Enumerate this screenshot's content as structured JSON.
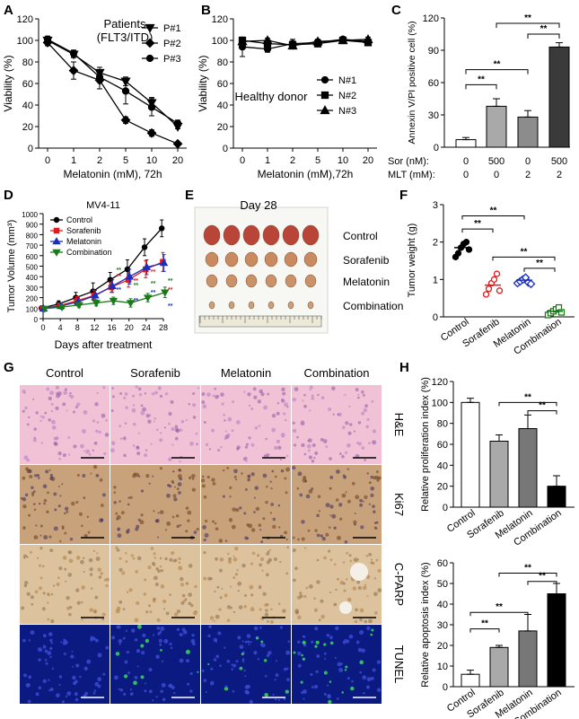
{
  "panels": {
    "A": "A",
    "B": "B",
    "C": "C",
    "D": "D",
    "E": "E",
    "F": "F",
    "G": "G",
    "H": "H"
  },
  "colors": {
    "control": "#000000",
    "sorafenib": "#e31a1c",
    "melatonin": "#1a2fbf",
    "combination": "#1a7a1a",
    "he": "#f1c1d6",
    "ki67": "#c8a27a",
    "parp": "#dcc39e",
    "tunel": "#0a1a80",
    "tunel_green": "#39d95a"
  },
  "chart_data": [
    {
      "id": "A",
      "type": "line",
      "title": "Patients (FLT3/ITD)",
      "xlabel": "Melatonin (mM), 72h",
      "ylabel": "Viability (%)",
      "x": [
        "0",
        "1",
        "2",
        "5",
        "10",
        "20"
      ],
      "ylim": [
        0,
        120
      ],
      "yticks": [
        "0",
        "20",
        "40",
        "60",
        "80",
        "100",
        "120"
      ],
      "series": [
        {
          "name": "P#1",
          "marker": "tri-down",
          "values": [
            100,
            87,
            70,
            62,
            42,
            20
          ],
          "err": [
            3,
            3,
            5,
            4,
            5,
            2
          ]
        },
        {
          "name": "P#2",
          "marker": "diamond",
          "values": [
            98,
            72,
            63,
            26,
            14,
            4
          ],
          "err": [
            3,
            8,
            8,
            3,
            3,
            1
          ]
        },
        {
          "name": "P#3",
          "marker": "circle",
          "values": [
            101,
            88,
            66,
            53,
            38,
            23
          ],
          "err": [
            3,
            3,
            5,
            12,
            8,
            3
          ]
        }
      ]
    },
    {
      "id": "B",
      "type": "line",
      "title": "Healthy donor",
      "xlabel": "Melatonin (mM),72h",
      "ylabel": "Viability (%)",
      "x": [
        "0",
        "1",
        "2",
        "5",
        "10",
        "20"
      ],
      "ylim": [
        0,
        120
      ],
      "yticks": [
        "0",
        "20",
        "40",
        "60",
        "80",
        "100",
        "120"
      ],
      "series": [
        {
          "name": "N#1",
          "marker": "circle",
          "values": [
            94,
            92,
            97,
            98,
            101,
            99
          ],
          "err": [
            9,
            3,
            4,
            3,
            2,
            2
          ]
        },
        {
          "name": "N#2",
          "marker": "square",
          "values": [
            100,
            97,
            96,
            97,
            100,
            98
          ],
          "err": [
            3,
            3,
            3,
            3,
            2,
            2
          ]
        },
        {
          "name": "N#3",
          "marker": "triangle",
          "values": [
            99,
            100,
            95,
            99,
            100,
            101
          ],
          "err": [
            3,
            2,
            3,
            2,
            2,
            2
          ]
        }
      ]
    },
    {
      "id": "C",
      "type": "bar",
      "ylabel": "Annexin V/PI positive cell (%)",
      "ylim": [
        0,
        120
      ],
      "yticks": [
        "0",
        "30",
        "60",
        "90",
        "120"
      ],
      "row_labels": [
        "Sor (nM):",
        "MLT (mM):"
      ],
      "groups": [
        [
          "0",
          "0"
        ],
        [
          "500",
          "0"
        ],
        [
          "0",
          "2"
        ],
        [
          "500",
          "2"
        ]
      ],
      "values": [
        7,
        38,
        28,
        93
      ],
      "err": [
        2,
        7,
        6,
        4
      ],
      "fills": [
        "#ffffff",
        "#a9a9a9",
        "#8c8c8c",
        "#3a3a3a"
      ],
      "sig": [
        "**",
        "**",
        "**",
        "**"
      ]
    },
    {
      "id": "D",
      "type": "line",
      "title": "MV4-11",
      "xlabel": "Days after treatment",
      "ylabel": "Tumor Volume (mm³)",
      "x": [
        0,
        4,
        8,
        12,
        16,
        20,
        24,
        28
      ],
      "ylim": [
        0,
        1000
      ],
      "xticks": [
        "0",
        "4",
        "8",
        "12",
        "16",
        "20",
        "24",
        "28"
      ],
      "yticks": [
        "0",
        "100",
        "200",
        "300",
        "400",
        "500",
        "600",
        "700",
        "800",
        "900",
        "1000"
      ],
      "series": [
        {
          "name": "Control",
          "marker": "circle",
          "values": [
            100,
            140,
            200,
            260,
            370,
            470,
            680,
            860
          ],
          "err": [
            20,
            30,
            50,
            80,
            70,
            90,
            80,
            80
          ]
        },
        {
          "name": "Sorafenib",
          "marker": "square",
          "values": [
            95,
            125,
            170,
            220,
            300,
            370,
            470,
            540
          ],
          "err": [
            20,
            25,
            40,
            50,
            50,
            70,
            80,
            90
          ]
        },
        {
          "name": "Melatonin",
          "marker": "triangle",
          "values": [
            95,
            120,
            160,
            220,
            310,
            400,
            490,
            530
          ],
          "err": [
            20,
            25,
            40,
            50,
            60,
            70,
            70,
            80
          ]
        },
        {
          "name": "Combination",
          "marker": "tri-down",
          "values": [
            95,
            110,
            130,
            150,
            170,
            150,
            200,
            250
          ],
          "err": [
            15,
            20,
            25,
            30,
            35,
            40,
            40,
            50
          ]
        }
      ],
      "annotations": [
        "**",
        "**",
        "**",
        "**",
        "**",
        "**",
        "**",
        "**",
        "**",
        "**",
        "**",
        "**"
      ]
    },
    {
      "id": "F",
      "type": "scatter",
      "ylabel": "Tumor weight (g)",
      "ylim": [
        0,
        3
      ],
      "yticks": [
        "0",
        "1",
        "2",
        "3"
      ],
      "categories": [
        "Control",
        "Sorafenib",
        "Melatonin",
        "Combination"
      ],
      "means": [
        1.85,
        0.85,
        0.98,
        0.15
      ],
      "points": [
        [
          1.6,
          1.7,
          1.85,
          1.95,
          2.0,
          1.8
        ],
        [
          0.6,
          0.75,
          0.9,
          1.0,
          1.15,
          0.7
        ],
        [
          0.9,
          0.95,
          1.0,
          1.05,
          0.92,
          0.88
        ],
        [
          0.05,
          0.1,
          0.15,
          0.2,
          0.25,
          0.12
        ]
      ],
      "sig": [
        "**",
        "**",
        "**",
        "**"
      ]
    },
    {
      "id": "H1",
      "type": "bar",
      "ylabel": "Relative proliferation index (%)",
      "ylim": [
        0,
        120
      ],
      "yticks": [
        "0",
        "20",
        "40",
        "60",
        "80",
        "100",
        "120"
      ],
      "categories": [
        "Control",
        "Sorafenib",
        "Melatonin",
        "Combination"
      ],
      "values": [
        100,
        63,
        75,
        20
      ],
      "err": [
        4,
        6,
        13,
        10
      ],
      "sig": [
        "**",
        "**"
      ]
    },
    {
      "id": "H2",
      "type": "bar",
      "ylabel": "Relative apoptosis index (%)",
      "ylim": [
        0,
        60
      ],
      "yticks": [
        "0",
        "10",
        "20",
        "30",
        "40",
        "50",
        "60"
      ],
      "categories": [
        "Control",
        "Sorafenib",
        "Melatonin",
        "Combination"
      ],
      "values": [
        6,
        19,
        27,
        45
      ],
      "err": [
        2,
        1,
        8,
        5
      ],
      "sig": [
        "**",
        "**",
        "**",
        "**"
      ]
    }
  ],
  "photo_E": {
    "title": "Day 28",
    "rows": [
      "Control",
      "Sorafenib",
      "Melatonin",
      "Combination"
    ]
  },
  "grid_G": {
    "cols": [
      "Control",
      "Sorafenib",
      "Melatonin",
      "Combination"
    ],
    "rows": [
      "H&E",
      "Ki67",
      "C-PARP",
      "TUNEL"
    ]
  }
}
